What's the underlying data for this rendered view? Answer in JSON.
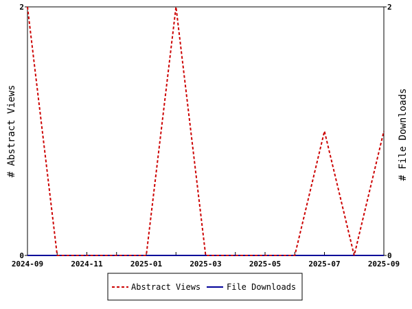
{
  "chart_data": {
    "type": "line",
    "x": [
      "2024-09",
      "2024-10",
      "2024-11",
      "2024-12",
      "2025-01",
      "2025-02",
      "2025-03",
      "2025-04",
      "2025-05",
      "2025-06",
      "2025-07",
      "2025-08",
      "2025-09"
    ],
    "x_tick_labels": [
      "2024-09",
      "2024-11",
      "2025-01",
      "2025-03",
      "2025-05",
      "2025-07",
      "2025-09"
    ],
    "ylabel_left": "# Abstract Views",
    "ylabel_right": "# File Downloads",
    "ylim_left": [
      0,
      2
    ],
    "ylim_right": [
      0,
      2
    ],
    "y_tick_labels_left": [
      "0",
      "2"
    ],
    "y_tick_labels_right": [
      "0",
      "2"
    ],
    "grid": false,
    "legend_position": "bottom-center",
    "series": [
      {
        "name": "Abstract Views",
        "axis": "left",
        "color": "#cc0000",
        "dash": "dashed",
        "values": [
          2,
          0,
          0,
          0,
          0,
          2,
          0,
          0,
          0,
          0,
          1,
          0,
          1
        ]
      },
      {
        "name": "File Downloads",
        "axis": "right",
        "color": "#000099",
        "dash": "solid",
        "values": [
          0,
          0,
          0,
          0,
          0,
          0,
          0,
          0,
          0,
          0,
          0,
          0,
          0
        ]
      }
    ]
  }
}
